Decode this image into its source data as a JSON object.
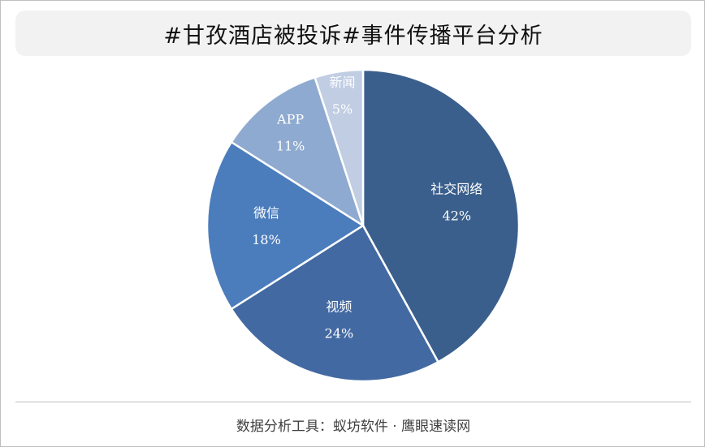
{
  "chart_data": {
    "type": "pie",
    "title": "#甘孜酒店被投诉#事件传播平台分析",
    "slices": [
      {
        "label": "社交网络",
        "value": 42,
        "value_label": "42%",
        "color": "#3a5f8c"
      },
      {
        "label": "视频",
        "value": 24,
        "value_label": "24%",
        "color": "#4369a2"
      },
      {
        "label": "微信",
        "value": 18,
        "value_label": "18%",
        "color": "#4b7dbc"
      },
      {
        "label": "APP",
        "value": 11,
        "value_label": "11%",
        "color": "#8eaad0"
      },
      {
        "label": "新闻",
        "value": 5,
        "value_label": "5%",
        "color": "#c0cde3"
      }
    ],
    "start_angle_deg": 0,
    "direction": "clockwise",
    "slice_border_color": "#ffffff",
    "legend": "none"
  },
  "footer": {
    "source": "数据分析工具：蚁坊软件 · 鹰眼速读网"
  }
}
